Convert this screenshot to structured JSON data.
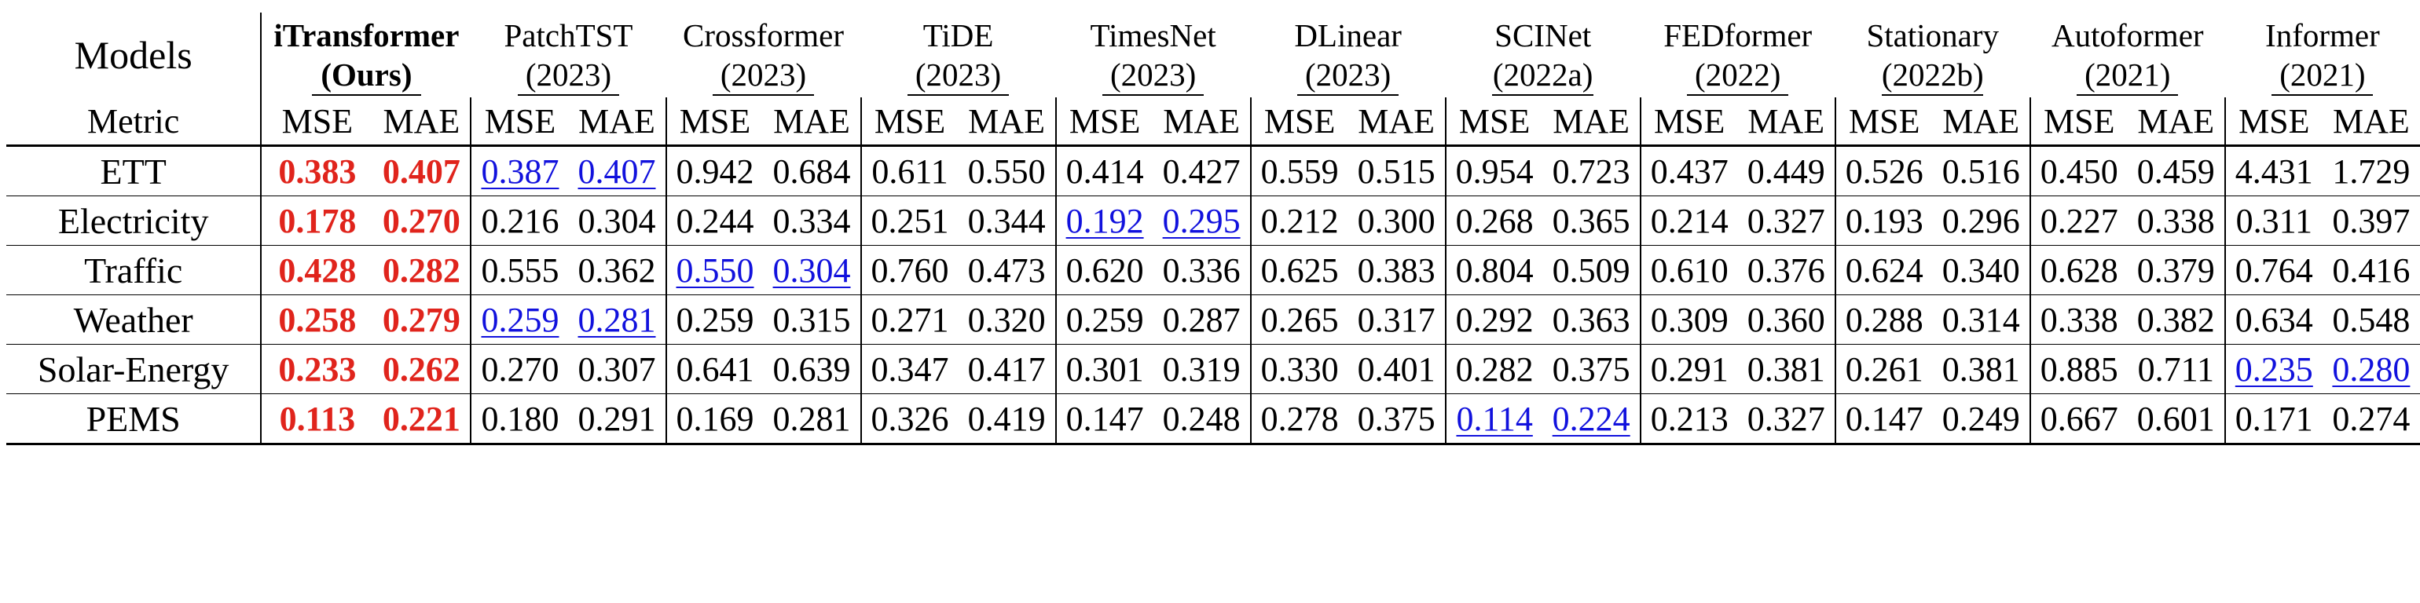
{
  "header": {
    "corner_label": "Models",
    "metric_label": "Metric",
    "mse_label": "MSE",
    "mae_label": "MAE"
  },
  "models": [
    {
      "name": "iTransformer",
      "year": "(Ours)"
    },
    {
      "name": "PatchTST",
      "year": "(2023)"
    },
    {
      "name": "Crossformer",
      "year": "(2023)"
    },
    {
      "name": "TiDE",
      "year": "(2023)"
    },
    {
      "name": "TimesNet",
      "year": "(2023)"
    },
    {
      "name": "DLinear",
      "year": "(2023)"
    },
    {
      "name": "SCINet",
      "year": "(2022a)"
    },
    {
      "name": "FEDformer",
      "year": "(2022)"
    },
    {
      "name": "Stationary",
      "year": "(2022b)"
    },
    {
      "name": "Autoformer",
      "year": "(2021)"
    },
    {
      "name": "Informer",
      "year": "(2021)"
    }
  ],
  "highlight_colors": {
    "best": "#e0241c",
    "second_best": "#1111dd"
  },
  "rows": [
    {
      "dataset": "ETT",
      "values": [
        [
          "0.383",
          "0.407"
        ],
        [
          "0.387",
          "0.407"
        ],
        [
          "0.942",
          "0.684"
        ],
        [
          "0.611",
          "0.550"
        ],
        [
          "0.414",
          "0.427"
        ],
        [
          "0.559",
          "0.515"
        ],
        [
          "0.954",
          "0.723"
        ],
        [
          "0.437",
          "0.449"
        ],
        [
          "0.526",
          "0.516"
        ],
        [
          "0.450",
          "0.459"
        ],
        [
          "4.431",
          "1.729"
        ]
      ],
      "best": [
        0
      ],
      "second": [
        1
      ]
    },
    {
      "dataset": "Electricity",
      "values": [
        [
          "0.178",
          "0.270"
        ],
        [
          "0.216",
          "0.304"
        ],
        [
          "0.244",
          "0.334"
        ],
        [
          "0.251",
          "0.344"
        ],
        [
          "0.192",
          "0.295"
        ],
        [
          "0.212",
          "0.300"
        ],
        [
          "0.268",
          "0.365"
        ],
        [
          "0.214",
          "0.327"
        ],
        [
          "0.193",
          "0.296"
        ],
        [
          "0.227",
          "0.338"
        ],
        [
          "0.311",
          "0.397"
        ]
      ],
      "best": [
        0
      ],
      "second": [
        4
      ]
    },
    {
      "dataset": "Traffic",
      "values": [
        [
          "0.428",
          "0.282"
        ],
        [
          "0.555",
          "0.362"
        ],
        [
          "0.550",
          "0.304"
        ],
        [
          "0.760",
          "0.473"
        ],
        [
          "0.620",
          "0.336"
        ],
        [
          "0.625",
          "0.383"
        ],
        [
          "0.804",
          "0.509"
        ],
        [
          "0.610",
          "0.376"
        ],
        [
          "0.624",
          "0.340"
        ],
        [
          "0.628",
          "0.379"
        ],
        [
          "0.764",
          "0.416"
        ]
      ],
      "best": [
        0
      ],
      "second": [
        2
      ]
    },
    {
      "dataset": "Weather",
      "values": [
        [
          "0.258",
          "0.279"
        ],
        [
          "0.259",
          "0.281"
        ],
        [
          "0.259",
          "0.315"
        ],
        [
          "0.271",
          "0.320"
        ],
        [
          "0.259",
          "0.287"
        ],
        [
          "0.265",
          "0.317"
        ],
        [
          "0.292",
          "0.363"
        ],
        [
          "0.309",
          "0.360"
        ],
        [
          "0.288",
          "0.314"
        ],
        [
          "0.338",
          "0.382"
        ],
        [
          "0.634",
          "0.548"
        ]
      ],
      "best": [
        0
      ],
      "second": [
        1
      ]
    },
    {
      "dataset": "Solar-Energy",
      "values": [
        [
          "0.233",
          "0.262"
        ],
        [
          "0.270",
          "0.307"
        ],
        [
          "0.641",
          "0.639"
        ],
        [
          "0.347",
          "0.417"
        ],
        [
          "0.301",
          "0.319"
        ],
        [
          "0.330",
          "0.401"
        ],
        [
          "0.282",
          "0.375"
        ],
        [
          "0.291",
          "0.381"
        ],
        [
          "0.261",
          "0.381"
        ],
        [
          "0.885",
          "0.711"
        ],
        [
          "0.235",
          "0.280"
        ]
      ],
      "best": [
        0
      ],
      "second": [
        10
      ]
    },
    {
      "dataset": "PEMS",
      "values": [
        [
          "0.113",
          "0.221"
        ],
        [
          "0.180",
          "0.291"
        ],
        [
          "0.169",
          "0.281"
        ],
        [
          "0.326",
          "0.419"
        ],
        [
          "0.147",
          "0.248"
        ],
        [
          "0.278",
          "0.375"
        ],
        [
          "0.114",
          "0.224"
        ],
        [
          "0.213",
          "0.327"
        ],
        [
          "0.147",
          "0.249"
        ],
        [
          "0.667",
          "0.601"
        ],
        [
          "0.171",
          "0.274"
        ]
      ],
      "best": [
        0
      ],
      "second": [
        6
      ]
    }
  ]
}
